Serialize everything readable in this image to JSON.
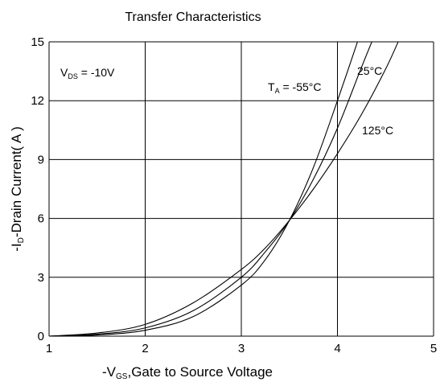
{
  "chart_data": {
    "type": "line",
    "title": "Transfer Characteristics",
    "xlabel": {
      "prefix": "-V",
      "sub": "GS",
      "rest": ",Gate to Source Voltage"
    },
    "ylabel": {
      "prefix": "-I",
      "sub": "D",
      "rest": "-Drain Current( A )"
    },
    "xlim": [
      1,
      5
    ],
    "ylim": [
      0,
      15
    ],
    "xticks": [
      "1",
      "2",
      "3",
      "4",
      "5"
    ],
    "yticks": [
      "0",
      "3",
      "6",
      "9",
      "12",
      "15"
    ],
    "grid": true,
    "condition": {
      "prefix": "V",
      "sub": "DS",
      "rest": " = -10V"
    },
    "series": [
      {
        "name": "T_A = -55°C",
        "label": {
          "prefix": "T",
          "sub": "A",
          "rest": " = -55°C"
        },
        "x": [
          1.0,
          1.5,
          2.0,
          2.5,
          3.0,
          3.25,
          3.5,
          3.75,
          4.0,
          4.25
        ],
        "y": [
          0.0,
          0.06,
          0.3,
          1.0,
          2.6,
          3.9,
          5.9,
          8.6,
          12.0,
          15.6
        ]
      },
      {
        "name": "25°C",
        "label": {
          "prefix": "25°C"
        },
        "x": [
          1.0,
          1.5,
          2.0,
          2.5,
          3.0,
          3.25,
          3.5,
          3.75,
          4.0,
          4.25,
          4.4
        ],
        "y": [
          0.0,
          0.1,
          0.42,
          1.3,
          3.0,
          4.3,
          5.9,
          8.0,
          10.6,
          13.7,
          15.5
        ]
      },
      {
        "name": "125°C",
        "label": {
          "prefix": "125°C"
        },
        "x": [
          1.0,
          1.5,
          2.0,
          2.5,
          3.0,
          3.25,
          3.5,
          3.75,
          4.0,
          4.25,
          4.5,
          4.65
        ],
        "y": [
          0.0,
          0.16,
          0.6,
          1.7,
          3.4,
          4.5,
          5.9,
          7.5,
          9.3,
          11.3,
          13.6,
          15.2
        ]
      }
    ]
  }
}
